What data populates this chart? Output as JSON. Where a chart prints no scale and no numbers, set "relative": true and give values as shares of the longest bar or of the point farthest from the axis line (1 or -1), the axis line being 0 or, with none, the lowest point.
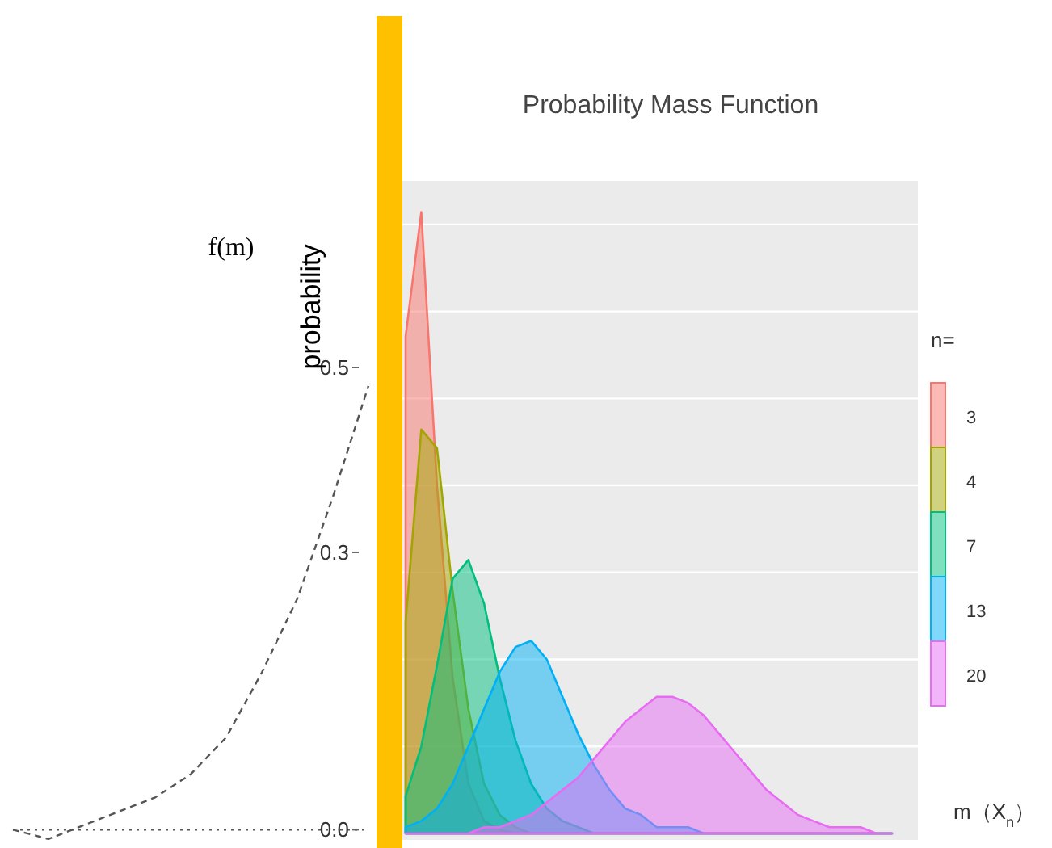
{
  "chart_data": [
    {
      "type": "line",
      "ylabel": "f(m)",
      "categories": [
        null,
        null,
        null,
        null,
        null,
        null,
        null,
        null,
        null,
        null,
        null
      ],
      "series": [
        {
          "color": "#555555",
          "values": [
            0.0,
            -0.01,
            0.005,
            0.02,
            0.035,
            0.06,
            0.1,
            0.17,
            0.25,
            0.36,
            0.48
          ]
        }
      ],
      "ylim": [
        -0.011,
        0.7
      ],
      "yticks": [
        {
          "value": 0,
          "label": "0.0"
        },
        0.3,
        0.5
      ],
      "tick_labels": "y",
      "line_style": "dashed",
      "ref_lines": [
        {
          "axis": "y",
          "value": 0,
          "line_style": "dotted",
          "color": "#555555"
        }
      ]
    },
    {
      "type": "area",
      "title": "Probability Mass Function",
      "ylabel": "probability",
      "xlabel": "m（X$_{n}$）",
      "legend_title": "n=",
      "legend": "right",
      "relative": true,
      "grid": true,
      "categories": [
        null,
        null,
        null,
        null,
        null,
        null,
        null,
        null,
        null,
        null,
        null,
        null,
        null,
        null,
        null,
        null,
        null,
        null,
        null,
        null,
        null,
        null,
        null,
        null,
        null,
        null,
        null,
        null,
        null,
        null,
        null,
        null
      ],
      "series": [
        {
          "name": "3",
          "color": "#f8766d",
          "values": [
            0.8,
            1.0,
            0.56,
            0.25,
            0.08,
            0.02,
            0.006,
            0,
            0,
            0,
            0,
            0,
            0,
            0,
            0,
            0,
            0,
            0,
            0,
            0,
            0,
            0,
            0,
            0,
            0,
            0,
            0,
            0,
            0,
            0,
            0,
            0
          ]
        },
        {
          "name": "4",
          "color": "#a3a500",
          "values": [
            0.34,
            0.65,
            0.62,
            0.39,
            0.2,
            0.08,
            0.03,
            0.01,
            0,
            0,
            0,
            0,
            0,
            0,
            0,
            0,
            0,
            0,
            0,
            0,
            0,
            0,
            0,
            0,
            0,
            0,
            0,
            0,
            0,
            0,
            0,
            0
          ]
        },
        {
          "name": "7",
          "color": "#00bf7d",
          "values": [
            0.06,
            0.14,
            0.27,
            0.41,
            0.44,
            0.37,
            0.25,
            0.15,
            0.08,
            0.04,
            0.02,
            0.01,
            0,
            0,
            0,
            0,
            0,
            0,
            0,
            0,
            0,
            0,
            0,
            0,
            0,
            0,
            0,
            0,
            0,
            0,
            0,
            0
          ]
        },
        {
          "name": "13",
          "color": "#00b0f6",
          "values": [
            0.01,
            0.02,
            0.04,
            0.08,
            0.14,
            0.2,
            0.26,
            0.3,
            0.31,
            0.28,
            0.22,
            0.16,
            0.11,
            0.07,
            0.04,
            0.03,
            0.01,
            0.01,
            0.01,
            0,
            0,
            0,
            0,
            0,
            0,
            0,
            0,
            0,
            0,
            0,
            0,
            0
          ]
        },
        {
          "name": "20",
          "color": "#e76bf3",
          "values": [
            0,
            0,
            0,
            0,
            0,
            0.01,
            0.01,
            0.02,
            0.03,
            0.05,
            0.07,
            0.09,
            0.12,
            0.15,
            0.18,
            0.2,
            0.22,
            0.22,
            0.21,
            0.19,
            0.16,
            0.13,
            0.1,
            0.07,
            0.05,
            0.03,
            0.02,
            0.01,
            0.01,
            0.01,
            0,
            0
          ]
        }
      ]
    }
  ]
}
